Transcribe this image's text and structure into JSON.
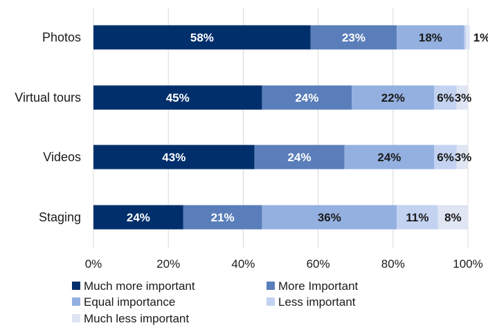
{
  "chart_data": {
    "type": "bar",
    "orientation": "horizontal",
    "stacked": true,
    "categories": [
      "Photos",
      "Virtual tours",
      "Videos",
      "Staging"
    ],
    "series": [
      {
        "name": "Much more important",
        "color": "#002f6c",
        "values": [
          58,
          45,
          43,
          24
        ],
        "labels": [
          "58%",
          "45%",
          "43%",
          "24%"
        ]
      },
      {
        "name": "More Important",
        "color": "#5a7eba",
        "values": [
          23,
          24,
          24,
          21
        ],
        "labels": [
          "23%",
          "24%",
          "24%",
          "21%"
        ]
      },
      {
        "name": "Equal importance",
        "color": "#93b0e0",
        "values": [
          18,
          22,
          24,
          36
        ],
        "labels": [
          "18%",
          "22%",
          "24%",
          "36%"
        ]
      },
      {
        "name": "Less important",
        "color": "#c3d2f1",
        "values": [
          0.5,
          6,
          6,
          11
        ],
        "labels": [
          "",
          "6%",
          "6%",
          "11%"
        ]
      },
      {
        "name": "Much less important",
        "color": "#dfe5f2",
        "values": [
          1,
          3,
          3,
          8
        ],
        "labels": [
          "1%",
          "3%",
          "3%",
          "8%"
        ]
      }
    ],
    "xlim": [
      0,
      100
    ],
    "x_ticks": [
      "0%",
      "20%",
      "40%",
      "60%",
      "80%",
      "100%"
    ],
    "grid": true,
    "legend_position": "bottom",
    "title": "",
    "xlabel": "",
    "ylabel": ""
  }
}
